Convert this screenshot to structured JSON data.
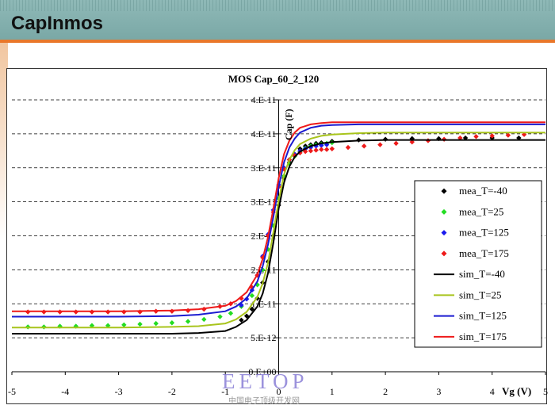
{
  "slide": {
    "title": "CapInmos",
    "watermark": "EETOP",
    "watermark_sub": "中国电子顶级开发网"
  },
  "chart_data": {
    "type": "scatter",
    "title": "MOS Cap_60_2_120",
    "xlabel": "Vg (V)",
    "ylabel": "Cap (F)",
    "xlim": [
      -5,
      5
    ],
    "ylim": [
      0,
      4e-11
    ],
    "x_ticks": [
      -5,
      -4,
      -3,
      -2,
      -1,
      0,
      1,
      2,
      3,
      4,
      5
    ],
    "x_tick_labels": [
      "-5",
      "-4",
      "-3",
      "-2",
      "-1",
      "0",
      "1",
      "2",
      "3",
      "4",
      "5"
    ],
    "y_ticks": [
      0,
      5e-12,
      1e-11,
      1.5e-11,
      2e-11,
      2.5e-11,
      3e-11,
      3.5e-11,
      4e-11
    ],
    "y_tick_labels": [
      "0.E+00",
      "5.E-12",
      "1.E-11",
      "2.E-11",
      "2.E-11",
      "3.E-11",
      "3.E-11",
      "4.E-11",
      "4.E-11"
    ],
    "grid": "horizontal dashed",
    "legend_position": "right",
    "series": [
      {
        "name": "mea_T=-40",
        "kind": "markers",
        "marker": "diamond",
        "color": "#000000",
        "x": [
          -0.7,
          -0.6,
          -0.5,
          -0.4,
          -0.3,
          -0.2,
          -0.1,
          0.0,
          0.1,
          0.2,
          0.3,
          0.4,
          0.5,
          0.6,
          0.7,
          0.8,
          1.0,
          1.5,
          2.0,
          2.5,
          3.0,
          3.5,
          4.0,
          4.5
        ],
        "y": [
          7.6e-12,
          8.2e-12,
          9.2e-12,
          1.08e-11,
          1.31e-11,
          1.62e-11,
          2e-11,
          2.45e-11,
          2.85e-11,
          3.08e-11,
          3.2e-11,
          3.28e-11,
          3.32e-11,
          3.34e-11,
          3.36e-11,
          3.37e-11,
          3.39e-11,
          3.41e-11,
          3.42e-11,
          3.43e-11,
          3.43e-11,
          3.44e-11,
          3.44e-11,
          3.44e-11
        ]
      },
      {
        "name": "mea_T=25",
        "kind": "markers",
        "marker": "diamond",
        "color": "#22dd22",
        "x": [
          -4.7,
          -4.4,
          -4.1,
          -3.8,
          -3.5,
          -3.2,
          -2.9,
          -2.6,
          -2.3,
          -2.0,
          -1.7,
          -1.4,
          -1.1,
          -0.9,
          -0.7,
          -0.5,
          -0.4,
          -0.3,
          -0.2,
          -0.1,
          0.0,
          0.1,
          0.2,
          0.3,
          0.4,
          0.5,
          0.6,
          0.7,
          0.8,
          0.9,
          1.0
        ],
        "y": [
          6.6e-12,
          6.6e-12,
          6.7e-12,
          6.7e-12,
          6.8e-12,
          6.8e-12,
          6.9e-12,
          7e-12,
          7.1e-12,
          7.2e-12,
          7.4e-12,
          7.7e-12,
          8.1e-12,
          8.6e-12,
          9.6e-12,
          1.12e-11,
          1.28e-11,
          1.5e-11,
          1.8e-11,
          2.15e-11,
          2.55e-11,
          2.88e-11,
          3.06e-11,
          3.17e-11,
          3.24e-11,
          3.29e-11,
          3.32e-11,
          3.34e-11,
          3.35e-11,
          3.36e-11,
          3.37e-11
        ]
      },
      {
        "name": "mea_T=125",
        "kind": "markers",
        "marker": "diamond",
        "color": "#1a1aee",
        "x": [
          -0.7,
          -0.6,
          -0.5,
          -0.4,
          -0.3,
          -0.2,
          -0.1,
          0.0,
          0.1,
          0.2,
          0.3,
          0.4,
          0.5,
          0.6,
          0.7,
          0.8,
          0.9
        ],
        "y": [
          9.8e-12,
          1.07e-11,
          1.2e-11,
          1.42e-11,
          1.7e-11,
          2.02e-11,
          2.38e-11,
          2.75e-11,
          3e-11,
          3.12e-11,
          3.2e-11,
          3.25e-11,
          3.28e-11,
          3.3e-11,
          3.32e-11,
          3.33e-11,
          3.34e-11
        ]
      },
      {
        "name": "mea_T=175",
        "kind": "markers",
        "marker": "diamond",
        "color": "#ee1a1a",
        "x": [
          -4.7,
          -4.4,
          -4.1,
          -3.8,
          -3.5,
          -3.2,
          -2.9,
          -2.6,
          -2.3,
          -2.0,
          -1.7,
          -1.4,
          -1.1,
          -0.9,
          -0.7,
          -0.5,
          -0.4,
          -0.3,
          -0.2,
          -0.1,
          0.0,
          0.1,
          0.2,
          0.3,
          0.4,
          0.5,
          0.6,
          0.7,
          0.8,
          0.9,
          1.0,
          1.3,
          1.6,
          1.9,
          2.2,
          2.5,
          2.8,
          3.1,
          3.4,
          3.7,
          4.0,
          4.3,
          4.6
        ],
        "y": [
          8.8e-12,
          8.8e-12,
          8.8e-12,
          8.8e-12,
          8.8e-12,
          8.8e-12,
          8.8e-12,
          8.8e-12,
          8.9e-12,
          8.9e-12,
          9e-12,
          9.2e-12,
          9.6e-12,
          1e-11,
          1.08e-11,
          1.24e-11,
          1.42e-11,
          1.68e-11,
          2e-11,
          2.35e-11,
          2.72e-11,
          2.98e-11,
          3.12e-11,
          3.18e-11,
          3.22e-11,
          3.24e-11,
          3.25e-11,
          3.26e-11,
          3.27e-11,
          3.27e-11,
          3.28e-11,
          3.3e-11,
          3.32e-11,
          3.34e-11,
          3.36e-11,
          3.38e-11,
          3.4e-11,
          3.42e-11,
          3.44e-11,
          3.46e-11,
          3.47e-11,
          3.48e-11,
          3.49e-11
        ]
      },
      {
        "name": "sim_T=-40",
        "kind": "line",
        "color": "#000000",
        "x": [
          -5.0,
          -3.0,
          -2.0,
          -1.5,
          -1.0,
          -0.8,
          -0.6,
          -0.4,
          -0.3,
          -0.2,
          -0.1,
          0.0,
          0.1,
          0.2,
          0.3,
          0.4,
          0.6,
          0.8,
          1.0,
          1.5,
          2.0,
          3.0,
          4.0,
          5.0
        ],
        "y": [
          5.6e-12,
          5.6e-12,
          5.6e-12,
          5.7e-12,
          6e-12,
          6.6e-12,
          7.6e-12,
          9.6e-12,
          1.15e-11,
          1.45e-11,
          1.9e-11,
          2.4e-11,
          2.78e-11,
          3.02e-11,
          3.16e-11,
          3.24e-11,
          3.32e-11,
          3.36e-11,
          3.38e-11,
          3.4e-11,
          3.41e-11,
          3.41e-11,
          3.41e-11,
          3.41e-11
        ]
      },
      {
        "name": "sim_T=25",
        "kind": "line",
        "color": "#a8c41c",
        "x": [
          -5.0,
          -3.0,
          -2.0,
          -1.5,
          -1.0,
          -0.8,
          -0.6,
          -0.4,
          -0.3,
          -0.2,
          -0.1,
          0.0,
          0.1,
          0.2,
          0.3,
          0.4,
          0.6,
          0.8,
          1.0,
          1.5,
          2.0,
          3.0,
          4.0,
          5.0
        ],
        "y": [
          6.5e-12,
          6.5e-12,
          6.6e-12,
          6.7e-12,
          7.1e-12,
          7.7e-12,
          8.8e-12,
          1.1e-11,
          1.3e-11,
          1.6e-11,
          2.05e-11,
          2.52e-11,
          2.9e-11,
          3.12e-11,
          3.26e-11,
          3.35e-11,
          3.43e-11,
          3.47e-11,
          3.49e-11,
          3.51e-11,
          3.52e-11,
          3.52e-11,
          3.52e-11,
          3.52e-11
        ]
      },
      {
        "name": "sim_T=125",
        "kind": "line",
        "color": "#1a1ad0",
        "x": [
          -5.0,
          -3.0,
          -2.0,
          -1.5,
          -1.0,
          -0.8,
          -0.6,
          -0.4,
          -0.3,
          -0.2,
          -0.1,
          0.0,
          0.1,
          0.2,
          0.3,
          0.4,
          0.6,
          0.8,
          1.0,
          1.5,
          2.0,
          3.0,
          4.0,
          5.0
        ],
        "y": [
          8.1e-12,
          8.1e-12,
          8.2e-12,
          8.4e-12,
          8.9e-12,
          9.6e-12,
          1.08e-11,
          1.33e-11,
          1.55e-11,
          1.87e-11,
          2.28e-11,
          2.72e-11,
          3.08e-11,
          3.3e-11,
          3.43e-11,
          3.52e-11,
          3.59e-11,
          3.62e-11,
          3.63e-11,
          3.64e-11,
          3.64e-11,
          3.64e-11,
          3.64e-11,
          3.64e-11
        ]
      },
      {
        "name": "sim_T=175",
        "kind": "line",
        "color": "#ee1a1a",
        "x": [
          -5.0,
          -3.0,
          -2.0,
          -1.5,
          -1.0,
          -0.8,
          -0.6,
          -0.4,
          -0.3,
          -0.2,
          -0.1,
          0.0,
          0.1,
          0.2,
          0.3,
          0.4,
          0.6,
          0.8,
          1.0,
          1.5,
          2.0,
          3.0,
          4.0,
          5.0
        ],
        "y": [
          8.9e-12,
          8.9e-12,
          9e-12,
          9.2e-12,
          9.7e-12,
          1.04e-11,
          1.17e-11,
          1.43e-11,
          1.66e-11,
          1.98e-11,
          2.4e-11,
          2.85e-11,
          3.2e-11,
          3.4e-11,
          3.52e-11,
          3.59e-11,
          3.64e-11,
          3.66e-11,
          3.67e-11,
          3.67e-11,
          3.67e-11,
          3.67e-11,
          3.67e-11,
          3.67e-11
        ]
      }
    ]
  }
}
